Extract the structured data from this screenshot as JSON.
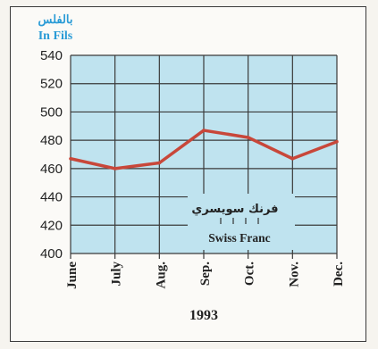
{
  "chart_data": {
    "type": "line",
    "unit_label_ar": "بالفلس",
    "unit_label_en": "In Fils",
    "categories": [
      "June",
      "July",
      "Aug.",
      "Sep.",
      "Oct.",
      "Nov.",
      "Dec."
    ],
    "series": [
      {
        "name_ar": "فرنك سويسري",
        "name": "Swiss Franc",
        "values": [
          467,
          460,
          464,
          487,
          482,
          467,
          479
        ],
        "color": "#c8473a"
      }
    ],
    "ylim": [
      400,
      540
    ],
    "yticks": [
      "540",
      "520",
      "500",
      "480",
      "460",
      "440",
      "420",
      "400"
    ],
    "xlabel": "1993",
    "grid": true,
    "plot_background": "#bfe3ef",
    "legend_position": "inside-bottom-right"
  }
}
